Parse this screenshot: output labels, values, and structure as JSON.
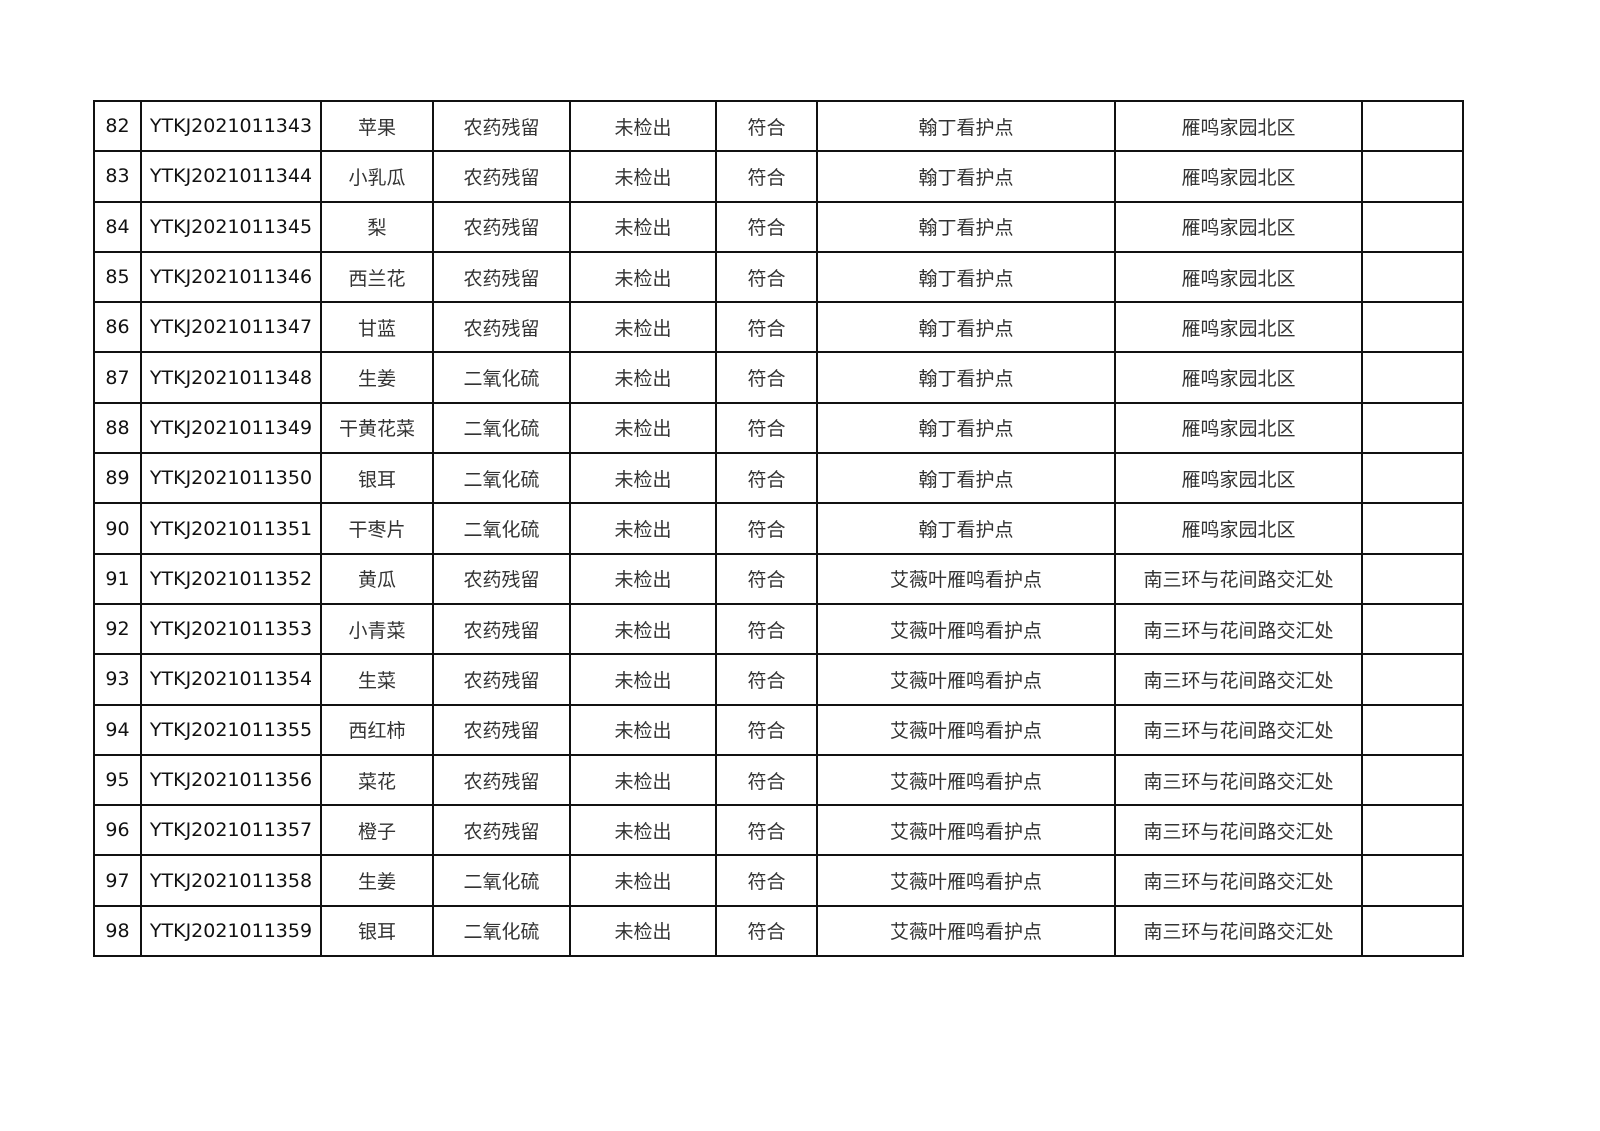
{
  "rows": [
    {
      "no": "82",
      "code": "YTKJ2021011343",
      "sample": "苹果",
      "item": "农药残留",
      "result": "未检出",
      "verdict": "符合",
      "site": "翰丁看护点",
      "location": "雁鸣家园北区",
      "remark": ""
    },
    {
      "no": "83",
      "code": "YTKJ2021011344",
      "sample": "小乳瓜",
      "item": "农药残留",
      "result": "未检出",
      "verdict": "符合",
      "site": "翰丁看护点",
      "location": "雁鸣家园北区",
      "remark": ""
    },
    {
      "no": "84",
      "code": "YTKJ2021011345",
      "sample": "梨",
      "item": "农药残留",
      "result": "未检出",
      "verdict": "符合",
      "site": "翰丁看护点",
      "location": "雁鸣家园北区",
      "remark": ""
    },
    {
      "no": "85",
      "code": "YTKJ2021011346",
      "sample": "西兰花",
      "item": "农药残留",
      "result": "未检出",
      "verdict": "符合",
      "site": "翰丁看护点",
      "location": "雁鸣家园北区",
      "remark": ""
    },
    {
      "no": "86",
      "code": "YTKJ2021011347",
      "sample": "甘蓝",
      "item": "农药残留",
      "result": "未检出",
      "verdict": "符合",
      "site": "翰丁看护点",
      "location": "雁鸣家园北区",
      "remark": ""
    },
    {
      "no": "87",
      "code": "YTKJ2021011348",
      "sample": "生姜",
      "item": "二氧化硫",
      "result": "未检出",
      "verdict": "符合",
      "site": "翰丁看护点",
      "location": "雁鸣家园北区",
      "remark": ""
    },
    {
      "no": "88",
      "code": "YTKJ2021011349",
      "sample": "干黄花菜",
      "item": "二氧化硫",
      "result": "未检出",
      "verdict": "符合",
      "site": "翰丁看护点",
      "location": "雁鸣家园北区",
      "remark": ""
    },
    {
      "no": "89",
      "code": "YTKJ2021011350",
      "sample": "银耳",
      "item": "二氧化硫",
      "result": "未检出",
      "verdict": "符合",
      "site": "翰丁看护点",
      "location": "雁鸣家园北区",
      "remark": ""
    },
    {
      "no": "90",
      "code": "YTKJ2021011351",
      "sample": "干枣片",
      "item": "二氧化硫",
      "result": "未检出",
      "verdict": "符合",
      "site": "翰丁看护点",
      "location": "雁鸣家园北区",
      "remark": ""
    },
    {
      "no": "91",
      "code": "YTKJ2021011352",
      "sample": "黄瓜",
      "item": "农药残留",
      "result": "未检出",
      "verdict": "符合",
      "site": "艾薇叶雁鸣看护点",
      "location": "南三环与花间路交汇处",
      "remark": ""
    },
    {
      "no": "92",
      "code": "YTKJ2021011353",
      "sample": "小青菜",
      "item": "农药残留",
      "result": "未检出",
      "verdict": "符合",
      "site": "艾薇叶雁鸣看护点",
      "location": "南三环与花间路交汇处",
      "remark": ""
    },
    {
      "no": "93",
      "code": "YTKJ2021011354",
      "sample": "生菜",
      "item": "农药残留",
      "result": "未检出",
      "verdict": "符合",
      "site": "艾薇叶雁鸣看护点",
      "location": "南三环与花间路交汇处",
      "remark": ""
    },
    {
      "no": "94",
      "code": "YTKJ2021011355",
      "sample": "西红柿",
      "item": "农药残留",
      "result": "未检出",
      "verdict": "符合",
      "site": "艾薇叶雁鸣看护点",
      "location": "南三环与花间路交汇处",
      "remark": ""
    },
    {
      "no": "95",
      "code": "YTKJ2021011356",
      "sample": "菜花",
      "item": "农药残留",
      "result": "未检出",
      "verdict": "符合",
      "site": "艾薇叶雁鸣看护点",
      "location": "南三环与花间路交汇处",
      "remark": ""
    },
    {
      "no": "96",
      "code": "YTKJ2021011357",
      "sample": "橙子",
      "item": "农药残留",
      "result": "未检出",
      "verdict": "符合",
      "site": "艾薇叶雁鸣看护点",
      "location": "南三环与花间路交汇处",
      "remark": ""
    },
    {
      "no": "97",
      "code": "YTKJ2021011358",
      "sample": "生姜",
      "item": "二氧化硫",
      "result": "未检出",
      "verdict": "符合",
      "site": "艾薇叶雁鸣看护点",
      "location": "南三环与花间路交汇处",
      "remark": ""
    },
    {
      "no": "98",
      "code": "YTKJ2021011359",
      "sample": "银耳",
      "item": "二氧化硫",
      "result": "未检出",
      "verdict": "符合",
      "site": "艾薇叶雁鸣看护点",
      "location": "南三环与花间路交汇处",
      "remark": ""
    }
  ]
}
